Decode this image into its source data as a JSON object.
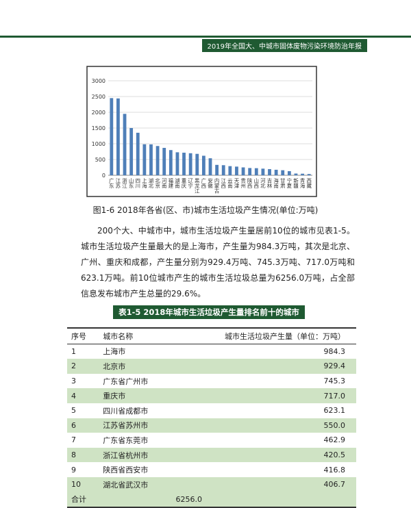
{
  "header": {
    "title": "2019年全国大、中城市固体废物污染环境防治年报"
  },
  "chart_data": {
    "type": "bar",
    "categories": [
      "广东",
      "江苏",
      "浙江",
      "山东",
      "四川",
      "上海",
      "湖北",
      "北京",
      "河南",
      "福建",
      "湖南",
      "重庆",
      "辽宁",
      "黑龙江",
      "广西",
      "安徽",
      "内蒙古",
      "江西",
      "云南",
      "天津",
      "贵州",
      "陕西",
      "山西",
      "河北",
      "吉林",
      "海南",
      "甘肃",
      "宁夏",
      "新疆",
      "青海",
      "西藏"
    ],
    "values": [
      2450,
      2440,
      1950,
      1500,
      1350,
      984,
      980,
      929,
      870,
      800,
      730,
      717,
      700,
      680,
      620,
      540,
      330,
      320,
      290,
      275,
      250,
      230,
      225,
      210,
      195,
      175,
      160,
      130,
      55,
      50,
      40
    ],
    "color": "#4f7fb8",
    "ylim": [
      0,
      3000
    ],
    "yticks": [
      0,
      500,
      1000,
      1500,
      2000,
      2500,
      3000
    ],
    "grid": true
  },
  "figure_caption": "图1-6  2018年各省(区、市)城市生活垃圾产生情况(单位:万吨)",
  "paragraph": "200个大、中城市中，城市生活垃圾产生量居前10位的城市见表1-5。城市生活垃圾产生量最大的是上海市，产生量为984.3万吨，其次是北京、广州、重庆和成都，产生量分别为929.4万吨、745.3万吨、717.0万吨和623.1万吨。前10位城市产生的城市生活垃圾总量为6256.0万吨，占全部信息发布城市产生总量的29.6%。",
  "table": {
    "title": "表1-5  2018年城市生活垃圾产生量排名前十的城市",
    "columns": [
      "序号",
      "城市名称",
      "城市生活垃圾产生量（单位：万吨）"
    ],
    "rows": [
      [
        "1",
        "上海市",
        "984.3"
      ],
      [
        "2",
        "北京市",
        "929.4"
      ],
      [
        "3",
        "广东省广州市",
        "745.3"
      ],
      [
        "4",
        "重庆市",
        "717.0"
      ],
      [
        "5",
        "四川省成都市",
        "623.1"
      ],
      [
        "6",
        "江苏省苏州市",
        "550.0"
      ],
      [
        "7",
        "广东省东莞市",
        "462.9"
      ],
      [
        "8",
        "浙江省杭州市",
        "420.5"
      ],
      [
        "9",
        "陕西省西安市",
        "416.8"
      ],
      [
        "10",
        "湖北省武汉市",
        "406.7"
      ]
    ],
    "total": [
      "合计",
      "6256.0"
    ]
  }
}
